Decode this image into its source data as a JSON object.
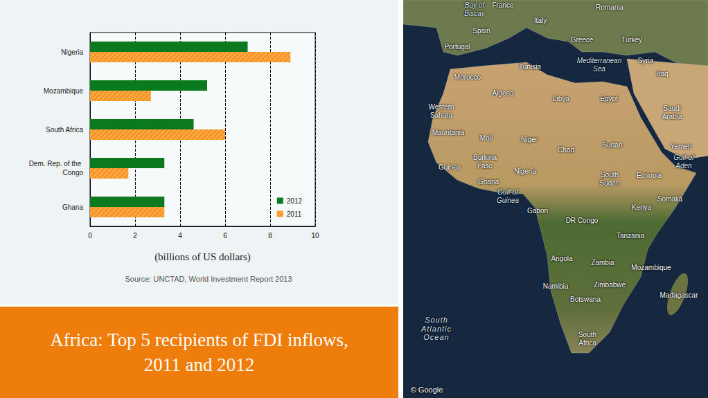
{
  "chart_data": {
    "type": "bar",
    "orientation": "horizontal",
    "title": "Africa: Top 5 recipients of FDI inflows, 2011 and 2012",
    "xlabel": "(billions of US dollars)",
    "source": "Source: UNCTAD, World Investment Report 2013",
    "categories": [
      "Nigeria",
      "Mozambique",
      "South Africa",
      "Dem. Rep. of the Congo",
      "Ghana"
    ],
    "series": [
      {
        "name": "2012",
        "color": "#0b7a1f",
        "values": [
          7.0,
          5.2,
          4.6,
          3.3,
          3.3
        ]
      },
      {
        "name": "2011",
        "color": "#f7931e",
        "values": [
          8.9,
          2.7,
          6.0,
          1.7,
          3.3
        ]
      }
    ],
    "xlim": [
      0,
      10
    ],
    "xticks": [
      0,
      2,
      4,
      6,
      8,
      10
    ],
    "grid": true,
    "legend": "bottom-right"
  },
  "map": {
    "labels": [
      "France",
      "Romania",
      "Bay of Biscay",
      "Italy",
      "Spain",
      "Greece",
      "Turkey",
      "Portugal",
      "Tunisia",
      "Mediterranean Sea",
      "Syria",
      "Iraq",
      "Morocco",
      "Algeria",
      "Libya",
      "Egypt",
      "Saudi Arabia",
      "Western Sahara",
      "Mauritania",
      "Mali",
      "Niger",
      "Chad",
      "Sudan",
      "Yemen",
      "Gulf of Aden",
      "Burkina Faso",
      "Guinea",
      "Nigeria",
      "South Sudan",
      "Ethiopia",
      "Ghana",
      "Gulf of Guinea",
      "Somalia",
      "Kenya",
      "Gabon",
      "DR Congo",
      "Tanzania",
      "Angola",
      "Zambia",
      "Mozambique",
      "Madagascar",
      "Zimbabwe",
      "Namibia",
      "Botswana",
      "South Atlantic Ocean",
      "South Africa"
    ],
    "credit": "© Google"
  }
}
